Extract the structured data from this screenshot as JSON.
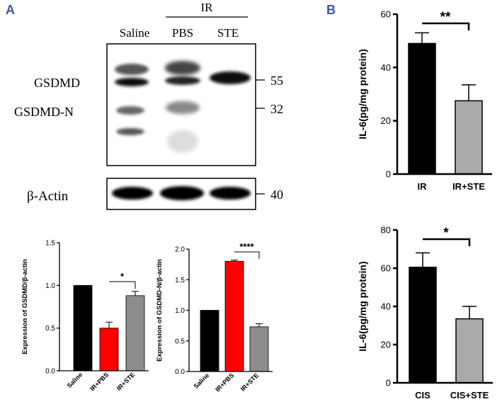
{
  "panel_labels": {
    "a": "A",
    "b": "B"
  },
  "blot": {
    "group_header": "IR",
    "lanes": [
      "Saline",
      "PBS",
      "STE"
    ],
    "bands": [
      "GSDMD",
      "GSDMD-N"
    ],
    "markers": [
      "55",
      "32"
    ],
    "actin_label": "β-Actin",
    "actin_marker": "40"
  },
  "colors": {
    "panel_label": "#3a57a7",
    "black": "#000000",
    "red": "#ff0000",
    "gray": "#8c8c8c",
    "light_gray": "#aaaaaa"
  },
  "chart_data": [
    {
      "type": "bar",
      "title": "",
      "ylabel": "Expression of GSDMD/β-actin",
      "categories": [
        "Saline",
        "IR+PBS",
        "IR+STE"
      ],
      "values": [
        1.0,
        0.5,
        0.88
      ],
      "errors": [
        0,
        0.07,
        0.05
      ],
      "colors": [
        "#000000",
        "#ff0000",
        "#8c8c8c"
      ],
      "ylim": [
        0,
        1.5
      ],
      "yticks": [
        "0.0",
        "0.5",
        "1.0",
        "1.5"
      ],
      "significance": {
        "from": 1,
        "to": 2,
        "label": "*"
      }
    },
    {
      "type": "bar",
      "title": "",
      "ylabel": "Expression of GSDMD-N/β-actin",
      "categories": [
        "Saline",
        "IR+PBS",
        "IR+STE"
      ],
      "values": [
        1.0,
        1.8,
        0.73
      ],
      "errors": [
        0,
        0.02,
        0.05
      ],
      "colors": [
        "#000000",
        "#ff0000",
        "#8c8c8c"
      ],
      "ylim": [
        0,
        2.0
      ],
      "yticks": [
        "0.0",
        "0.5",
        "1.0",
        "1.5",
        "2.0"
      ],
      "significance": {
        "from": 1,
        "to": 2,
        "label": "****"
      }
    },
    {
      "type": "bar",
      "title": "",
      "ylabel": "IL-6(pg/mg protein)",
      "categories": [
        "IR",
        "IR+STE"
      ],
      "values": [
        49,
        27.5
      ],
      "errors": [
        4,
        6
      ],
      "colors": [
        "#000000",
        "#aaaaaa"
      ],
      "ylim": [
        0,
        60
      ],
      "yticks": [
        "0",
        "20",
        "40",
        "60"
      ],
      "significance": {
        "from": 0,
        "to": 1,
        "label": "**"
      }
    },
    {
      "type": "bar",
      "title": "",
      "ylabel": "IL-6(pg/mg protein)",
      "categories": [
        "CIS",
        "CIS+STE"
      ],
      "values": [
        60.5,
        33.5
      ],
      "errors": [
        7.5,
        6.5
      ],
      "colors": [
        "#000000",
        "#aaaaaa"
      ],
      "ylim": [
        0,
        80
      ],
      "yticks": [
        "0",
        "20",
        "40",
        "60",
        "80"
      ],
      "significance": {
        "from": 0,
        "to": 1,
        "label": "*"
      }
    }
  ]
}
